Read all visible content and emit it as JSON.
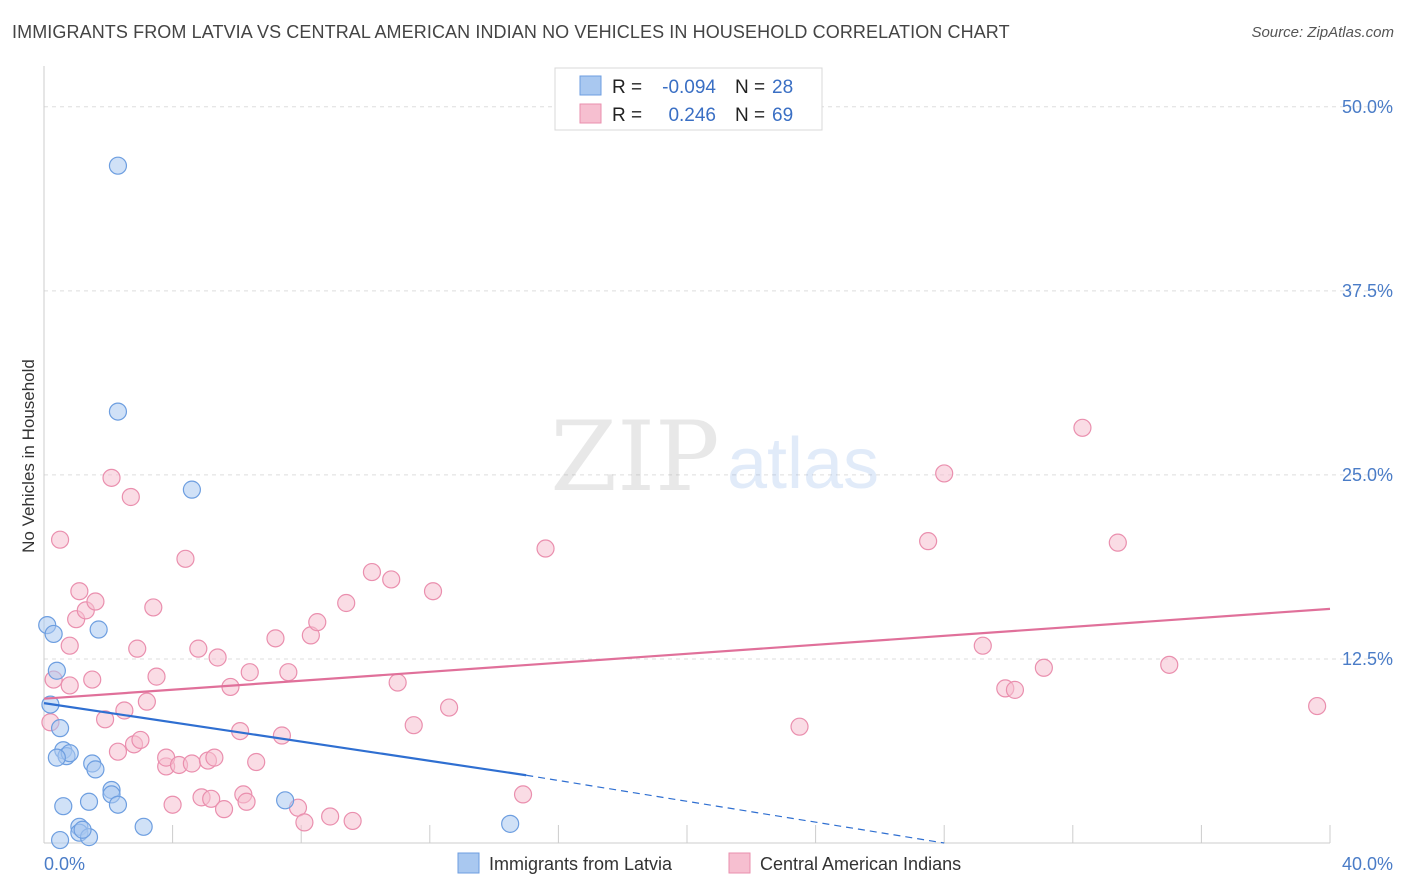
{
  "title": "IMMIGRANTS FROM LATVIA VS CENTRAL AMERICAN INDIAN NO VEHICLES IN HOUSEHOLD CORRELATION CHART",
  "source": "Source: ZipAtlas.com",
  "watermark": {
    "zip": "ZIP",
    "atlas": "atlas"
  },
  "colors": {
    "blue_fill": "#a9c8f0",
    "blue_stroke": "#6d9ee0",
    "blue_line": "#2f6fd1",
    "pink_fill": "#f6bfd0",
    "pink_stroke": "#ea8fae",
    "pink_line": "#e0709a",
    "grid": "#dddddd",
    "axis_label": "#4a7cc7"
  },
  "chart_data": {
    "type": "scatter",
    "title": "IMMIGRANTS FROM LATVIA VS CENTRAL AMERICAN INDIAN NO VEHICLES IN HOUSEHOLD CORRELATION CHART",
    "xlabel": "",
    "ylabel": "No Vehicles in Household",
    "xlim": [
      0,
      40
    ],
    "ylim": [
      0,
      52.5
    ],
    "x_tick_labels": [
      "0.0%",
      "40.0%"
    ],
    "y_ticks": [
      12.5,
      25.0,
      37.5,
      50.0
    ],
    "y_tick_labels": [
      "12.5%",
      "25.0%",
      "37.5%",
      "50.0%"
    ],
    "grid": true,
    "legend": {
      "placement": "top-center",
      "entries": [
        {
          "series": "Immigrants from Latvia",
          "r_label": "R =",
          "r_value": "-0.094",
          "n_label": "N =",
          "n_value": "28"
        },
        {
          "series": "Central American Indians",
          "r_label": "R =",
          "r_value": "0.246",
          "n_label": "N =",
          "n_value": "69"
        }
      ]
    },
    "series": [
      {
        "name": "Immigrants from Latvia",
        "color": "#a9c8f0",
        "points": [
          [
            0.1,
            14.8
          ],
          [
            0.3,
            14.2
          ],
          [
            0.4,
            11.7
          ],
          [
            0.2,
            9.4
          ],
          [
            0.5,
            7.8
          ],
          [
            0.6,
            6.3
          ],
          [
            0.7,
            5.9
          ],
          [
            0.8,
            6.1
          ],
          [
            0.4,
            5.8
          ],
          [
            1.5,
            5.4
          ],
          [
            1.6,
            5.0
          ],
          [
            2.1,
            3.6
          ],
          [
            2.1,
            3.3
          ],
          [
            1.4,
            2.8
          ],
          [
            0.6,
            2.5
          ],
          [
            2.3,
            2.6
          ],
          [
            1.1,
            1.1
          ],
          [
            1.1,
            0.7
          ],
          [
            1.4,
            0.4
          ],
          [
            3.1,
            1.1
          ],
          [
            7.5,
            2.9
          ],
          [
            14.5,
            1.3
          ],
          [
            1.7,
            14.5
          ],
          [
            2.3,
            29.3
          ],
          [
            4.6,
            24.0
          ],
          [
            2.3,
            46.0
          ],
          [
            0.5,
            0.2
          ],
          [
            1.2,
            0.9
          ]
        ],
        "trend": {
          "x0": 0,
          "y0": 9.5,
          "x1": 15.0,
          "y1": 4.6,
          "dashed_to_x": 28.0,
          "dashed_to_y": 0.0
        }
      },
      {
        "name": "Central American Indians",
        "color": "#f6bfd0",
        "points": [
          [
            0.2,
            8.2
          ],
          [
            0.3,
            11.1
          ],
          [
            0.5,
            20.6
          ],
          [
            0.8,
            13.4
          ],
          [
            0.8,
            10.7
          ],
          [
            1.0,
            15.2
          ],
          [
            1.1,
            17.1
          ],
          [
            1.3,
            15.8
          ],
          [
            1.5,
            11.1
          ],
          [
            1.6,
            16.4
          ],
          [
            1.9,
            8.4
          ],
          [
            2.1,
            24.8
          ],
          [
            2.7,
            23.5
          ],
          [
            2.3,
            6.2
          ],
          [
            2.5,
            9.0
          ],
          [
            2.8,
            6.7
          ],
          [
            2.9,
            13.2
          ],
          [
            3.0,
            7.0
          ],
          [
            3.2,
            9.6
          ],
          [
            3.4,
            16.0
          ],
          [
            3.5,
            11.3
          ],
          [
            3.8,
            5.2
          ],
          [
            3.8,
            5.8
          ],
          [
            4.0,
            2.6
          ],
          [
            4.2,
            5.3
          ],
          [
            4.4,
            19.3
          ],
          [
            4.6,
            5.4
          ],
          [
            4.8,
            13.2
          ],
          [
            4.9,
            3.1
          ],
          [
            5.1,
            5.6
          ],
          [
            5.2,
            3.0
          ],
          [
            5.3,
            5.8
          ],
          [
            5.4,
            12.6
          ],
          [
            5.6,
            2.3
          ],
          [
            5.8,
            10.6
          ],
          [
            6.1,
            7.6
          ],
          [
            6.2,
            3.3
          ],
          [
            6.3,
            2.8
          ],
          [
            6.4,
            11.6
          ],
          [
            6.6,
            5.5
          ],
          [
            7.2,
            13.9
          ],
          [
            7.4,
            7.3
          ],
          [
            7.6,
            11.6
          ],
          [
            7.9,
            2.4
          ],
          [
            8.1,
            1.4
          ],
          [
            8.3,
            14.1
          ],
          [
            8.5,
            15.0
          ],
          [
            8.9,
            1.8
          ],
          [
            9.4,
            16.3
          ],
          [
            9.6,
            1.5
          ],
          [
            10.2,
            18.4
          ],
          [
            10.8,
            17.9
          ],
          [
            11.0,
            10.9
          ],
          [
            11.5,
            8.0
          ],
          [
            12.1,
            17.1
          ],
          [
            12.6,
            9.2
          ],
          [
            14.9,
            3.3
          ],
          [
            15.6,
            20.0
          ],
          [
            23.5,
            7.9
          ],
          [
            27.5,
            20.5
          ],
          [
            28.0,
            25.1
          ],
          [
            29.2,
            13.4
          ],
          [
            29.9,
            10.5
          ],
          [
            30.2,
            10.4
          ],
          [
            31.1,
            11.9
          ],
          [
            32.3,
            28.2
          ],
          [
            33.4,
            20.4
          ],
          [
            35.0,
            12.1
          ],
          [
            39.6,
            9.3
          ]
        ],
        "trend": {
          "x0": 0,
          "y0": 9.8,
          "x1": 40.0,
          "y1": 15.9
        }
      }
    ]
  },
  "bottom_legend": [
    {
      "label": "Immigrants from Latvia",
      "swatch": "blue"
    },
    {
      "label": "Central American Indians",
      "swatch": "pink"
    }
  ]
}
